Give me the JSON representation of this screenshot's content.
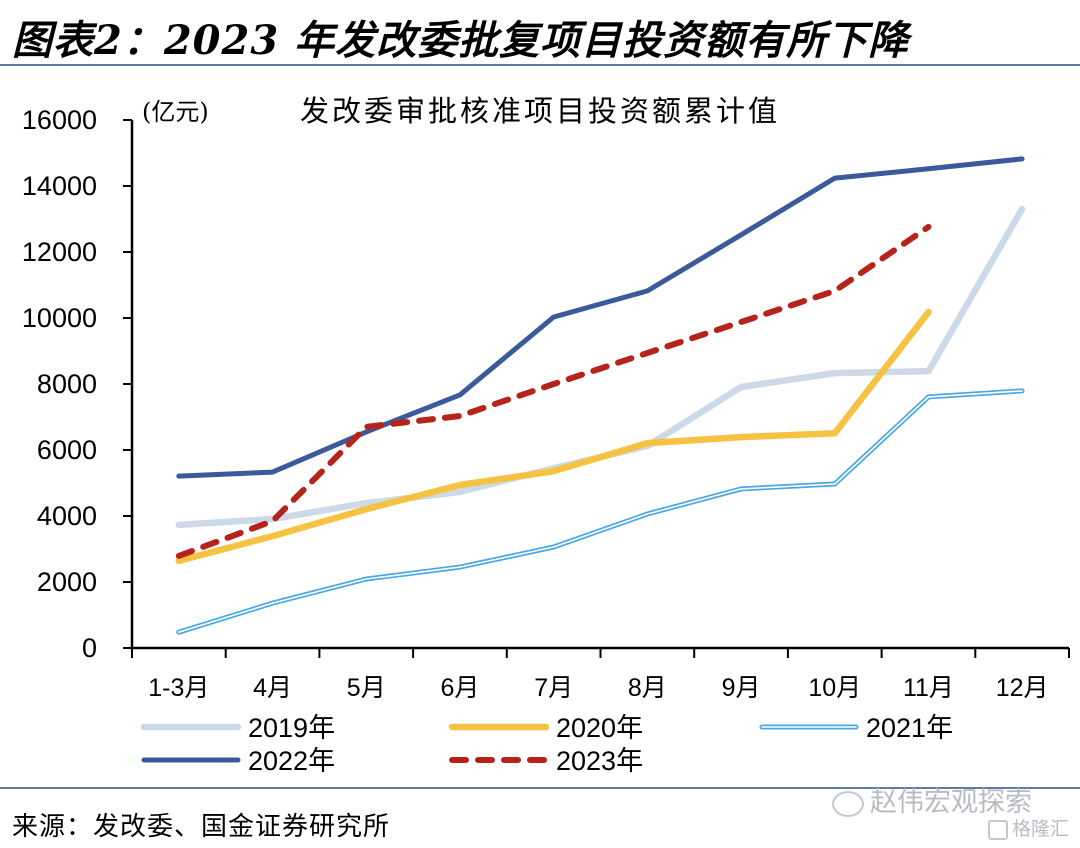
{
  "header": {
    "figure_title": "图表2：2023 年发改委批复项目投资额有所下降"
  },
  "footer": {
    "source": "来源：发改委、国金证券研究所",
    "watermark_wechat": "赵伟宏观探索",
    "watermark_site": "格隆汇"
  },
  "chart_data": {
    "type": "line",
    "title": "发改委审批核准项目投资额累计值",
    "ylabel": "(亿元)",
    "xlabel": "",
    "ylim": [
      0,
      16000
    ],
    "yticks": [
      0,
      2000,
      4000,
      6000,
      8000,
      10000,
      12000,
      14000,
      16000
    ],
    "grid": false,
    "legend_position": "bottom",
    "categories": [
      "1-3月",
      "4月",
      "5月",
      "6月",
      "7月",
      "8月",
      "9月",
      "10月",
      "11月",
      "12月"
    ],
    "series": [
      {
        "name": "2019年",
        "color": "#ccd9e6",
        "style": "solid-thick",
        "values": [
          3730,
          3910,
          4390,
          4730,
          5450,
          6120,
          7910,
          8330,
          8390,
          13300
        ]
      },
      {
        "name": "2020年",
        "color": "#f5c242",
        "style": "solid-thick",
        "values": [
          2640,
          3390,
          4210,
          4940,
          5360,
          6210,
          6390,
          6510,
          10180,
          null
        ]
      },
      {
        "name": "2021年",
        "color": "#4aa8e4",
        "style": "double",
        "values": [
          480,
          1360,
          2090,
          2450,
          3060,
          4060,
          4820,
          4970,
          7610,
          7790
        ]
      },
      {
        "name": "2022年",
        "color": "#3a5a9b",
        "style": "solid",
        "values": [
          5210,
          5330,
          6550,
          7670,
          10030,
          10820,
          12520,
          14240,
          14520,
          14820
        ]
      },
      {
        "name": "2023年",
        "color": "#b5231b",
        "style": "dashed",
        "values": [
          2790,
          3850,
          6700,
          7030,
          8000,
          8940,
          9880,
          10820,
          12760,
          null
        ]
      }
    ]
  }
}
